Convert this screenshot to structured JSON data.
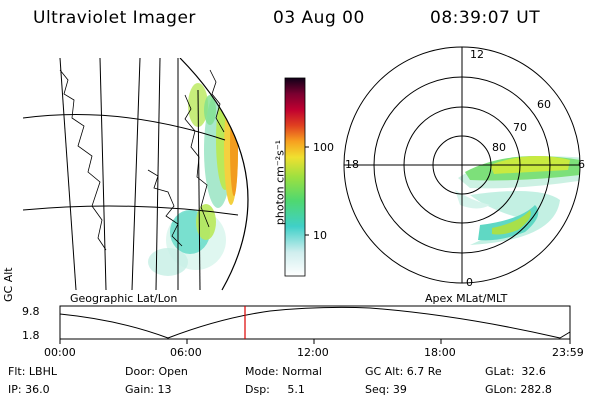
{
  "header": {
    "instrument": "Ultraviolet Imager",
    "date": "03 Aug 00",
    "time": "08:39:07 UT"
  },
  "left_panel": {
    "caption": "Geographic Lat/Lon"
  },
  "right_panel": {
    "caption": "Apex MLat/MLT",
    "mlt_labels": {
      "top": "12",
      "left": "18",
      "right": "6",
      "bottom": "0"
    },
    "lat_labels": [
      "60",
      "70",
      "80"
    ]
  },
  "colorbar": {
    "unit_label": "photon cm⁻²s⁻¹",
    "ticks": [
      "100",
      "10"
    ]
  },
  "orbit_plot": {
    "y_label": "GC Alt",
    "y_ticks": [
      "9.8",
      "1.8"
    ],
    "x_ticks": [
      "00:00",
      "06:00",
      "12:00",
      "18:00",
      "23:59"
    ],
    "current_time_marker_color": "#dd0000"
  },
  "footer": {
    "filter": "Flt: LBHL",
    "ip": "IP: 36.0",
    "door": "Door: Open",
    "gain": "Gain: 13",
    "mode": "Mode: Normal",
    "dsp": "Dsp:     5.1",
    "gc_alt": "GC Alt: 6.7 Re",
    "seq": "Seq: 39",
    "glat": "GLat:  32.6",
    "glon": "GLon: 282.8"
  }
}
